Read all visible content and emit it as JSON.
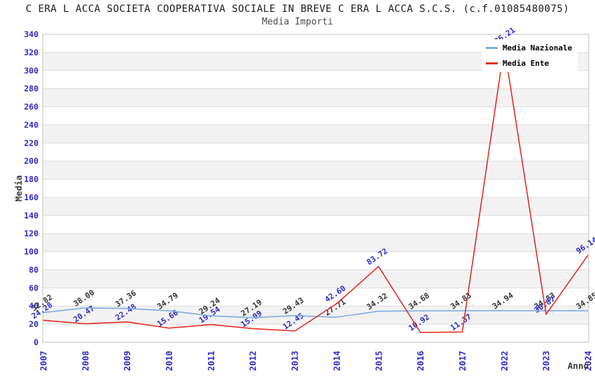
{
  "chart_data": {
    "type": "line",
    "title": "C ERA L ACCA SOCIETA COOPERATIVA SOCIALE IN BREVE C ERA L ACCA S.C.S. (c.f.01085480075)",
    "subtitle": "Media Importi",
    "xlabel": "Anno",
    "ylabel": "Media",
    "categories": [
      "2007",
      "2008",
      "2009",
      "2010",
      "2011",
      "2012",
      "2013",
      "2014",
      "2015",
      "2016",
      "2017",
      "2022",
      "2023",
      "2024"
    ],
    "ylim": [
      0,
      340
    ],
    "ytick_step": 20,
    "grid": true,
    "band_fill": true,
    "legend_position": "top-right",
    "series": [
      {
        "name": "Media Nazionale",
        "color": "#7dade0",
        "label_color": "#333333",
        "values": [
          32.82,
          38.0,
          37.36,
          34.79,
          29.24,
          27.19,
          29.43,
          27.71,
          34.32,
          34.68,
          34.83,
          34.94,
          34.83,
          34.85
        ]
      },
      {
        "name": "Media Ente",
        "color": "#e42d23",
        "label_color": "#2a2ace",
        "values": [
          24.28,
          20.47,
          22.48,
          15.66,
          19.54,
          15.09,
          12.45,
          42.6,
          83.72,
          10.92,
          11.37,
          326.21,
          30.87,
          96.14
        ]
      }
    ],
    "style": {
      "band_color": "#f2f2f2",
      "grid_color": "#dcdcdc",
      "border_color": "#c0c0c0",
      "tick_color": "#2a2ace"
    }
  }
}
